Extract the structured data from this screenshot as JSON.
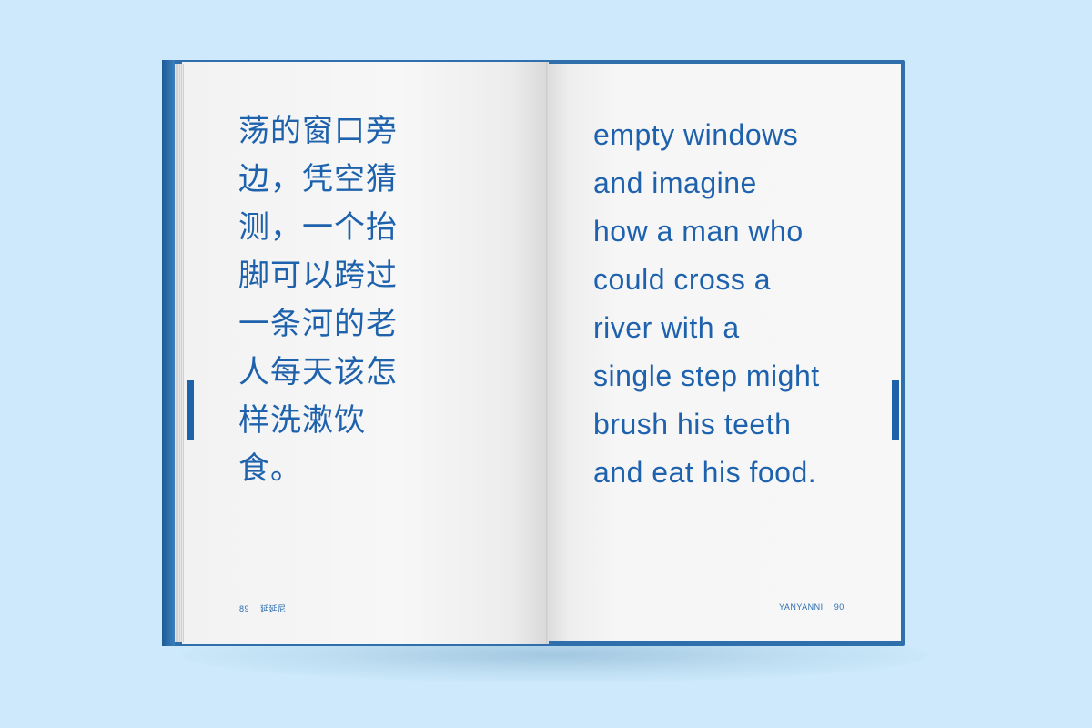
{
  "left_page": {
    "lines": [
      "荡的窗口旁",
      "边，凭空猜",
      "测，一个抬",
      "脚可以跨过",
      "一条河的老",
      "人每天该怎",
      "样洗漱饮",
      "食。"
    ],
    "page_number": "89",
    "running_head": "延延尼"
  },
  "right_page": {
    "lines": [
      "empty windows",
      "and imagine",
      "how a man who",
      "could cross a",
      "river with a",
      "single step might",
      "brush his teeth",
      "and eat his food."
    ],
    "running_head": "YANYANNI",
    "page_number": "90"
  },
  "colors": {
    "background": "#cde9fb",
    "cover": "#2f6fac",
    "text": "#1e62ad",
    "ribbon": "#1e63a8"
  }
}
